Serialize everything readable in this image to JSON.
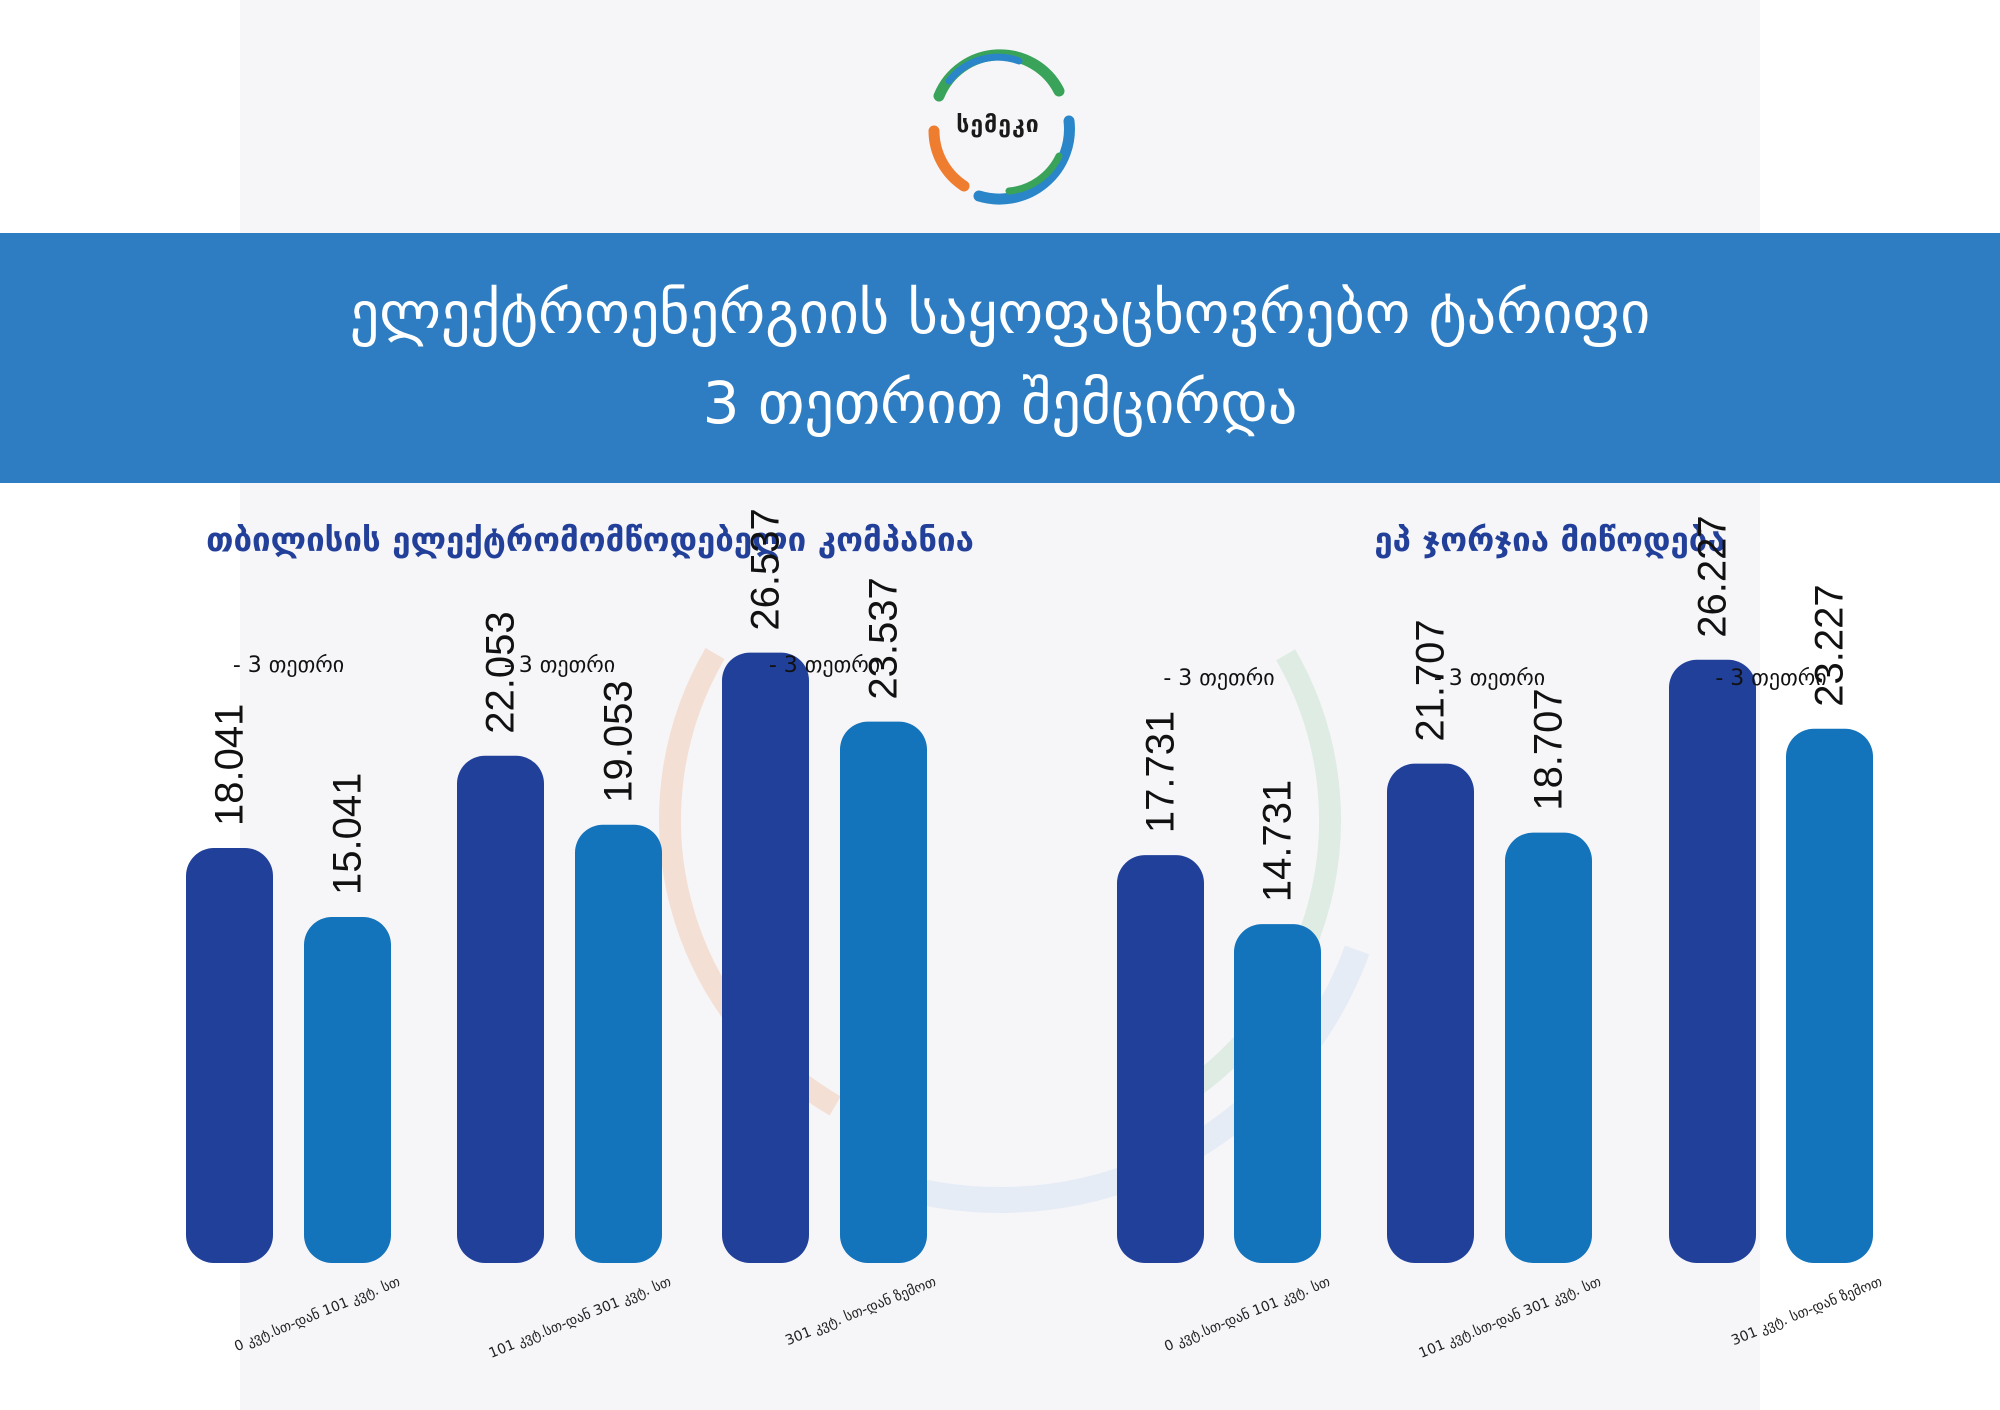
{
  "logo": {
    "text": "სემეკი"
  },
  "header": {
    "line1": "ელექტროენერგიის საყოფაცხოვრებო ტარიფი",
    "line2": "3 თეთრით შემცირდა"
  },
  "colors": {
    "before_bar": "#21409a",
    "after_bar": "#1373bb",
    "banner": "#2e7dc2",
    "title_text": "#22409a"
  },
  "chart_data": [
    {
      "type": "bar",
      "title": "თბილისის ელექტრომომწოდებელი კომპანია",
      "categories": [
        "0 კვტ.სთ-დან 101 კვტ. სთ",
        "101 კვტ.სთ-დან 301 კვტ. სთ",
        "301 კვტ. სთ-დან ზემოთ"
      ],
      "series": [
        {
          "values": [
            18.041,
            22.053,
            26.537
          ]
        },
        {
          "values": [
            15.041,
            19.053,
            23.537
          ]
        }
      ],
      "value_labels": [
        [
          "18.041",
          "15.041"
        ],
        [
          "22.053",
          "19.053"
        ],
        [
          "26.537",
          "23.537"
        ]
      ],
      "annotations": [
        "- 3 თეთრი",
        "- 3 თეთრი",
        "- 3 თეთრი"
      ]
    },
    {
      "type": "bar",
      "title": "ეპ ჯორჯია მიწოდება",
      "categories": [
        "0 კვტ.სთ-დან 101 კვტ. სთ",
        "101 კვტ.სთ-დან 301 კვტ. სთ",
        "301 კვტ. სთ-დან ზემოთ"
      ],
      "series": [
        {
          "values": [
            17.731,
            21.707,
            26.227
          ]
        },
        {
          "values": [
            14.731,
            18.707,
            23.227
          ]
        }
      ],
      "value_labels": [
        [
          "17.731",
          "14.731"
        ],
        [
          "21.707",
          "18.707"
        ],
        [
          "26.227",
          "23.227"
        ]
      ],
      "annotations": [
        "- 3 თეთრი",
        "- 3 თეთრი",
        "- 3 თეთრი"
      ]
    }
  ]
}
